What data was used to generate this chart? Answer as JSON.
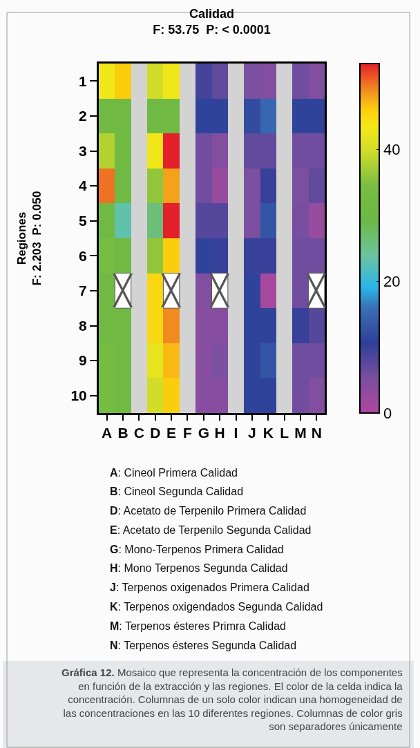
{
  "chart_data": {
    "type": "heatmap",
    "title": "Calidad\nF: 53.75  P: < 0.0001",
    "ylabel": "Regiones\nF: 2.203  P: 0.050",
    "categories": [
      "A",
      "B",
      "C",
      "D",
      "E",
      "F",
      "G",
      "H",
      "I",
      "J",
      "K",
      "L",
      "M",
      "N"
    ],
    "y_categories": [
      "1",
      "2",
      "3",
      "4",
      "5",
      "6",
      "7",
      "8",
      "9",
      "10"
    ],
    "cells": [
      [
        43,
        46,
        null,
        40,
        43,
        null,
        9,
        7,
        null,
        5,
        4.5,
        null,
        6,
        4.5
      ],
      [
        31,
        31,
        null,
        31,
        31,
        null,
        11,
        11,
        null,
        12,
        15,
        null,
        11,
        11
      ],
      [
        38,
        31,
        null,
        43,
        53,
        null,
        6,
        4.5,
        null,
        7,
        7,
        null,
        6,
        6
      ],
      [
        50,
        31,
        null,
        36,
        48,
        null,
        6,
        2.5,
        null,
        5,
        10,
        null,
        5,
        7
      ],
      [
        31,
        23,
        null,
        26,
        53,
        null,
        8,
        8,
        null,
        5,
        13,
        null,
        5.5,
        2.5
      ],
      [
        34,
        31,
        null,
        36,
        46,
        null,
        11,
        10,
        null,
        10,
        10,
        null,
        6,
        6
      ],
      [
        31,
        null,
        null,
        45,
        null,
        null,
        4.5,
        null,
        null,
        11,
        1,
        null,
        6,
        null
      ],
      [
        31,
        31,
        null,
        45,
        49,
        null,
        4,
        4,
        null,
        11,
        11,
        null,
        10,
        8
      ],
      [
        33,
        31,
        null,
        42,
        47,
        null,
        4,
        5,
        null,
        11,
        13,
        null,
        6,
        6
      ],
      [
        33,
        31,
        null,
        40,
        46,
        null,
        4,
        4,
        null,
        11,
        11,
        null,
        6,
        4.5
      ]
    ],
    "cell_labels": [
      [
        null,
        null,
        null,
        null,
        null,
        null,
        null,
        null,
        null,
        null,
        null,
        null,
        null,
        null
      ],
      [
        null,
        null,
        null,
        null,
        null,
        null,
        null,
        null,
        null,
        null,
        null,
        null,
        null,
        null
      ],
      [
        null,
        null,
        null,
        null,
        null,
        null,
        null,
        null,
        null,
        null,
        null,
        null,
        null,
        null
      ],
      [
        null,
        null,
        null,
        null,
        null,
        null,
        null,
        null,
        null,
        null,
        null,
        null,
        null,
        null
      ],
      [
        null,
        null,
        null,
        null,
        null,
        null,
        null,
        null,
        null,
        null,
        null,
        null,
        null,
        null
      ],
      [
        null,
        null,
        null,
        null,
        null,
        null,
        null,
        null,
        null,
        null,
        null,
        null,
        null,
        null
      ],
      [
        null,
        "╳",
        null,
        null,
        "╳",
        null,
        null,
        "╳",
        null,
        null,
        null,
        null,
        null,
        "╳"
      ],
      [
        null,
        null,
        null,
        null,
        null,
        null,
        null,
        null,
        null,
        null,
        null,
        null,
        null,
        null
      ],
      [
        null,
        null,
        null,
        null,
        null,
        null,
        null,
        null,
        null,
        null,
        null,
        null,
        null,
        null
      ],
      [
        null,
        null,
        null,
        null,
        null,
        null,
        null,
        null,
        null,
        null,
        null,
        null,
        null,
        null
      ]
    ],
    "clim": [
      0,
      53
    ],
    "cticks": [
      0,
      20,
      40
    ],
    "annotations": [
      "A: Cineol Primera Calidad",
      "B: Cineol Segunda Calidad",
      "D: Acetato de Terpenilo Primera Calidad",
      "E: Acetato de Terpenilo Segunda Calidad",
      "G: Mono-Terpenos Primera Calidad",
      "H: Mono Terpenos Segunda Calidad",
      "J: Terpenos oxigenados Primera Calidad",
      "K: Terpenos oxigendados Segunda Calidad",
      "M: Terpenos ésteres Primra Calidad",
      "N: Terpenos ésteres Segunda Calidad",
      "Gráfica 12. Mosaico que representa la concentración de los componentes\nen función de la extracción y las regiones. El color de la celda indica la\nconcentración. Columnas de un solo color indican una homogeneidad de\nlas concentraciones en las 10 diferentes regiones. Columnas de color gris\nson separadores únicamente"
    ]
  }
}
